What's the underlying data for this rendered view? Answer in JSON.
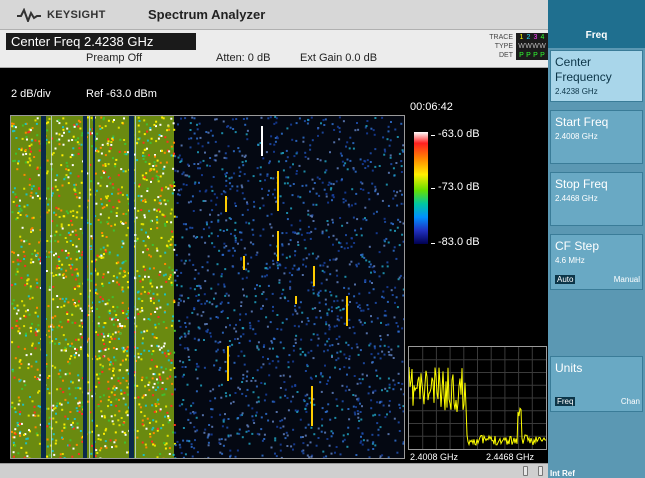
{
  "header": {
    "brand": "KEYSIGHT",
    "brand_icon": "keysight-wave-icon",
    "title": "Spectrum Analyzer"
  },
  "info": {
    "center_freq": "Center Freq 2.4238 GHz",
    "preamp": "Preamp Off",
    "atten": "Atten: 0 dB",
    "ext_gain": "Ext Gain 0.0 dB",
    "trace_label": "TRACE",
    "type_label": "TYPE",
    "det_label": "DET",
    "trace_nums": [
      "1",
      "2",
      "3",
      "4"
    ],
    "type_vals": [
      "W",
      "W",
      "W",
      "W"
    ],
    "det_vals": [
      "P",
      "P",
      "P",
      "P"
    ]
  },
  "display": {
    "scale": "2 dB/div",
    "ref": "Ref -63.0 dBm",
    "timer": "00:06:42",
    "colorbar": {
      "top": "-63.0 dB",
      "mid": "-73.0 dB",
      "bottom": "-83.0 dB"
    },
    "mini_start": "2.4008 GHz",
    "mini_stop": "2.4468 GHz"
  },
  "panel": {
    "title": "Freq",
    "softkeys": [
      {
        "label": "Center Frequency",
        "value": "2.4238 GHz",
        "active": true
      },
      {
        "label": "Start Freq",
        "value": "2.4008 GHz"
      },
      {
        "label": "Stop Freq",
        "value": "2.4468 GHz"
      },
      {
        "label": "CF Step",
        "value": "4.6 MHz",
        "toggle_on": "Auto",
        "toggle_off": "Manual"
      },
      {
        "label": "Units",
        "toggle_on": "Freq",
        "toggle_off": "Chan"
      }
    ],
    "footer": "Int Ref"
  }
}
